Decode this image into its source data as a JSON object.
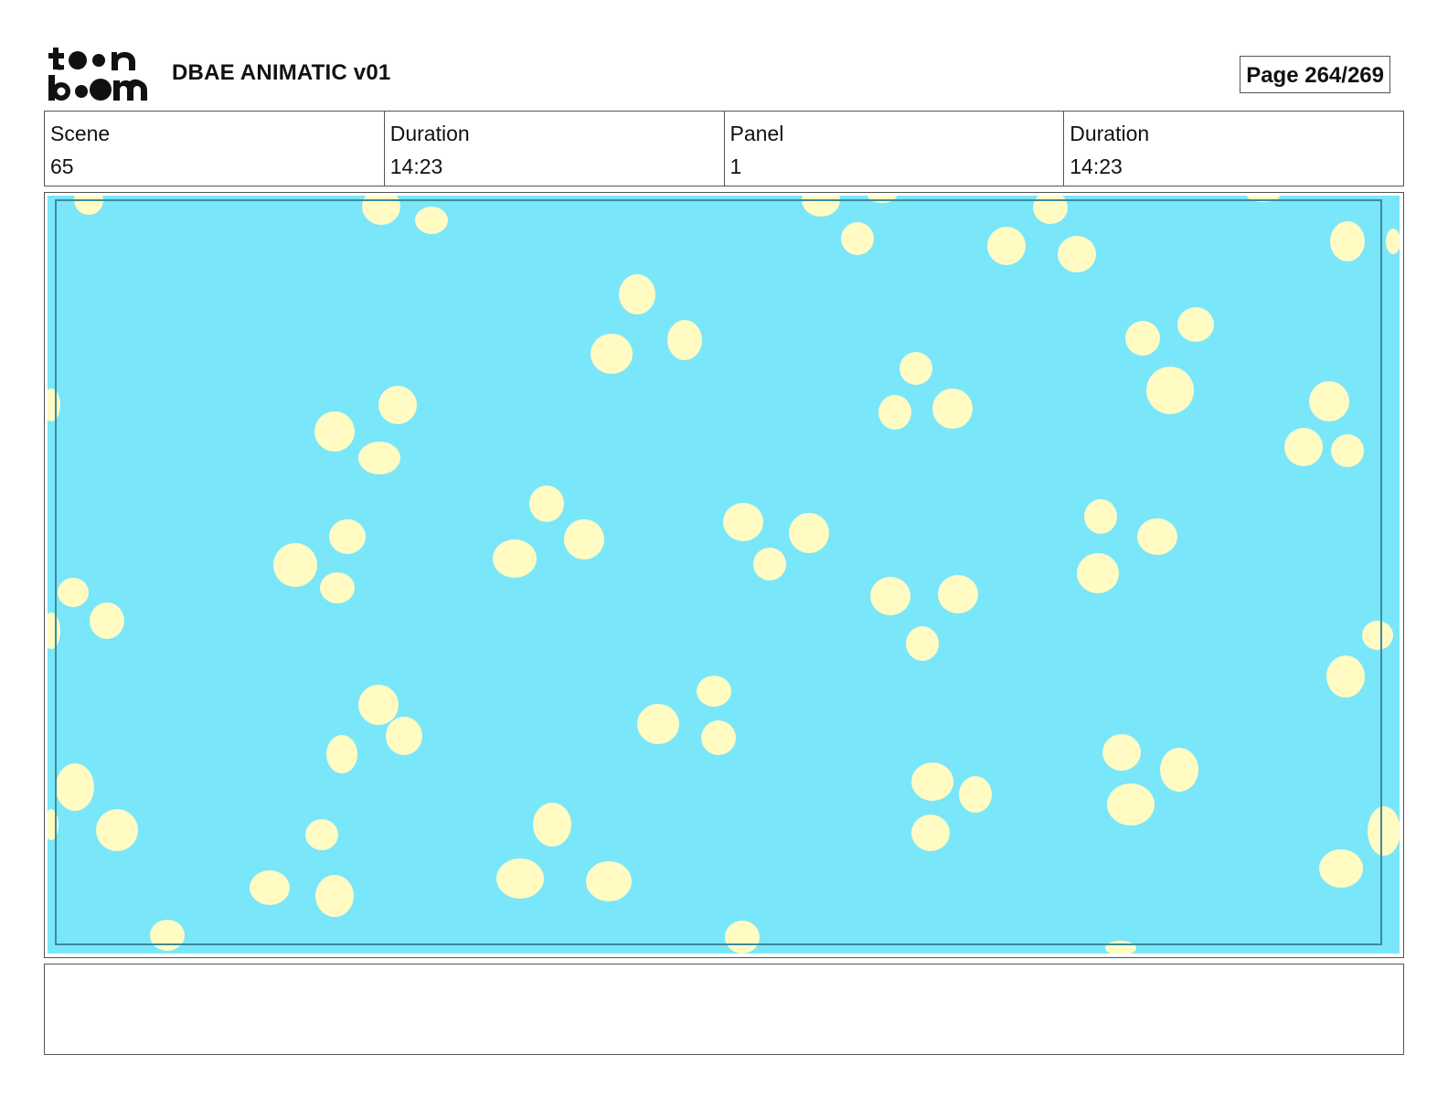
{
  "header": {
    "logo_text_top": "toon",
    "logo_text_bottom": "boom",
    "title": "DBAE ANIMATIC v01",
    "page_label": "Page 264/269"
  },
  "info": {
    "scene_label": "Scene",
    "scene_value": "65",
    "scene_duration_label": "Duration",
    "scene_duration_value": "14:23",
    "panel_label": "Panel",
    "panel_value": "1",
    "panel_duration_label": "Duration",
    "panel_duration_value": "14:23"
  },
  "panel": {
    "background_color": "#79e6fa",
    "dot_color": "#fffbc3",
    "safe_frame_color": "#3f8a9a"
  },
  "notes": {
    "text": ""
  }
}
